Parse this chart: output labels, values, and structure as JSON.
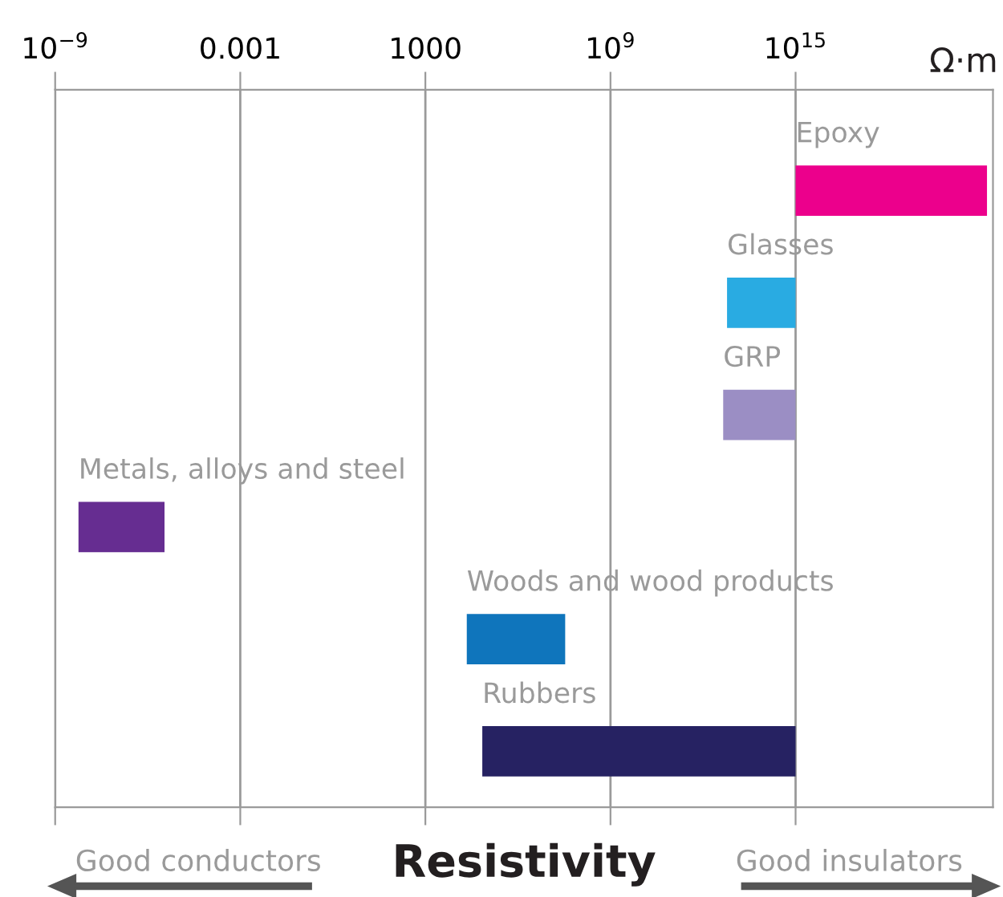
{
  "chart_data": {
    "type": "bar",
    "orientation": "horizontal",
    "log": "x",
    "xlabel": "Resistivity",
    "categories": [
      "Epoxy",
      "Glasses",
      "GRP",
      "Metals, alloys and steel",
      "Woods and wood products",
      "Rubbers"
    ],
    "base": [
      1000000000000000.0,
      6000000000000.0,
      4500000000000.0,
      5.7e-09,
      22000.0,
      70000.0
    ],
    "values": [
      1.6e+21,
      994000000000000.0,
      995500000000000.0,
      3.5e-06,
      34000000.0,
      999930000000000.0
    ],
    "colors": [
      "#ec008c",
      "#29abe2",
      "#9b8ec4",
      "#662d91",
      "#0f75bc",
      "#262262"
    ],
    "xlim": [
      1e-09,
      2.5e+21
    ],
    "xticks": [
      {
        "value": 1e-09,
        "label": "10$^{−9}$"
      },
      0.001,
      1000,
      {
        "value": 1000000000.0,
        "label": "10$^{9}$"
      },
      {
        "value": 1000000000000000.0,
        "label": "10$^{15}$"
      }
    ],
    "grid": "x",
    "tick_labels": "x",
    "annotations": [
      "Ω·m",
      "Good conductors",
      "Good insulators"
    ]
  }
}
